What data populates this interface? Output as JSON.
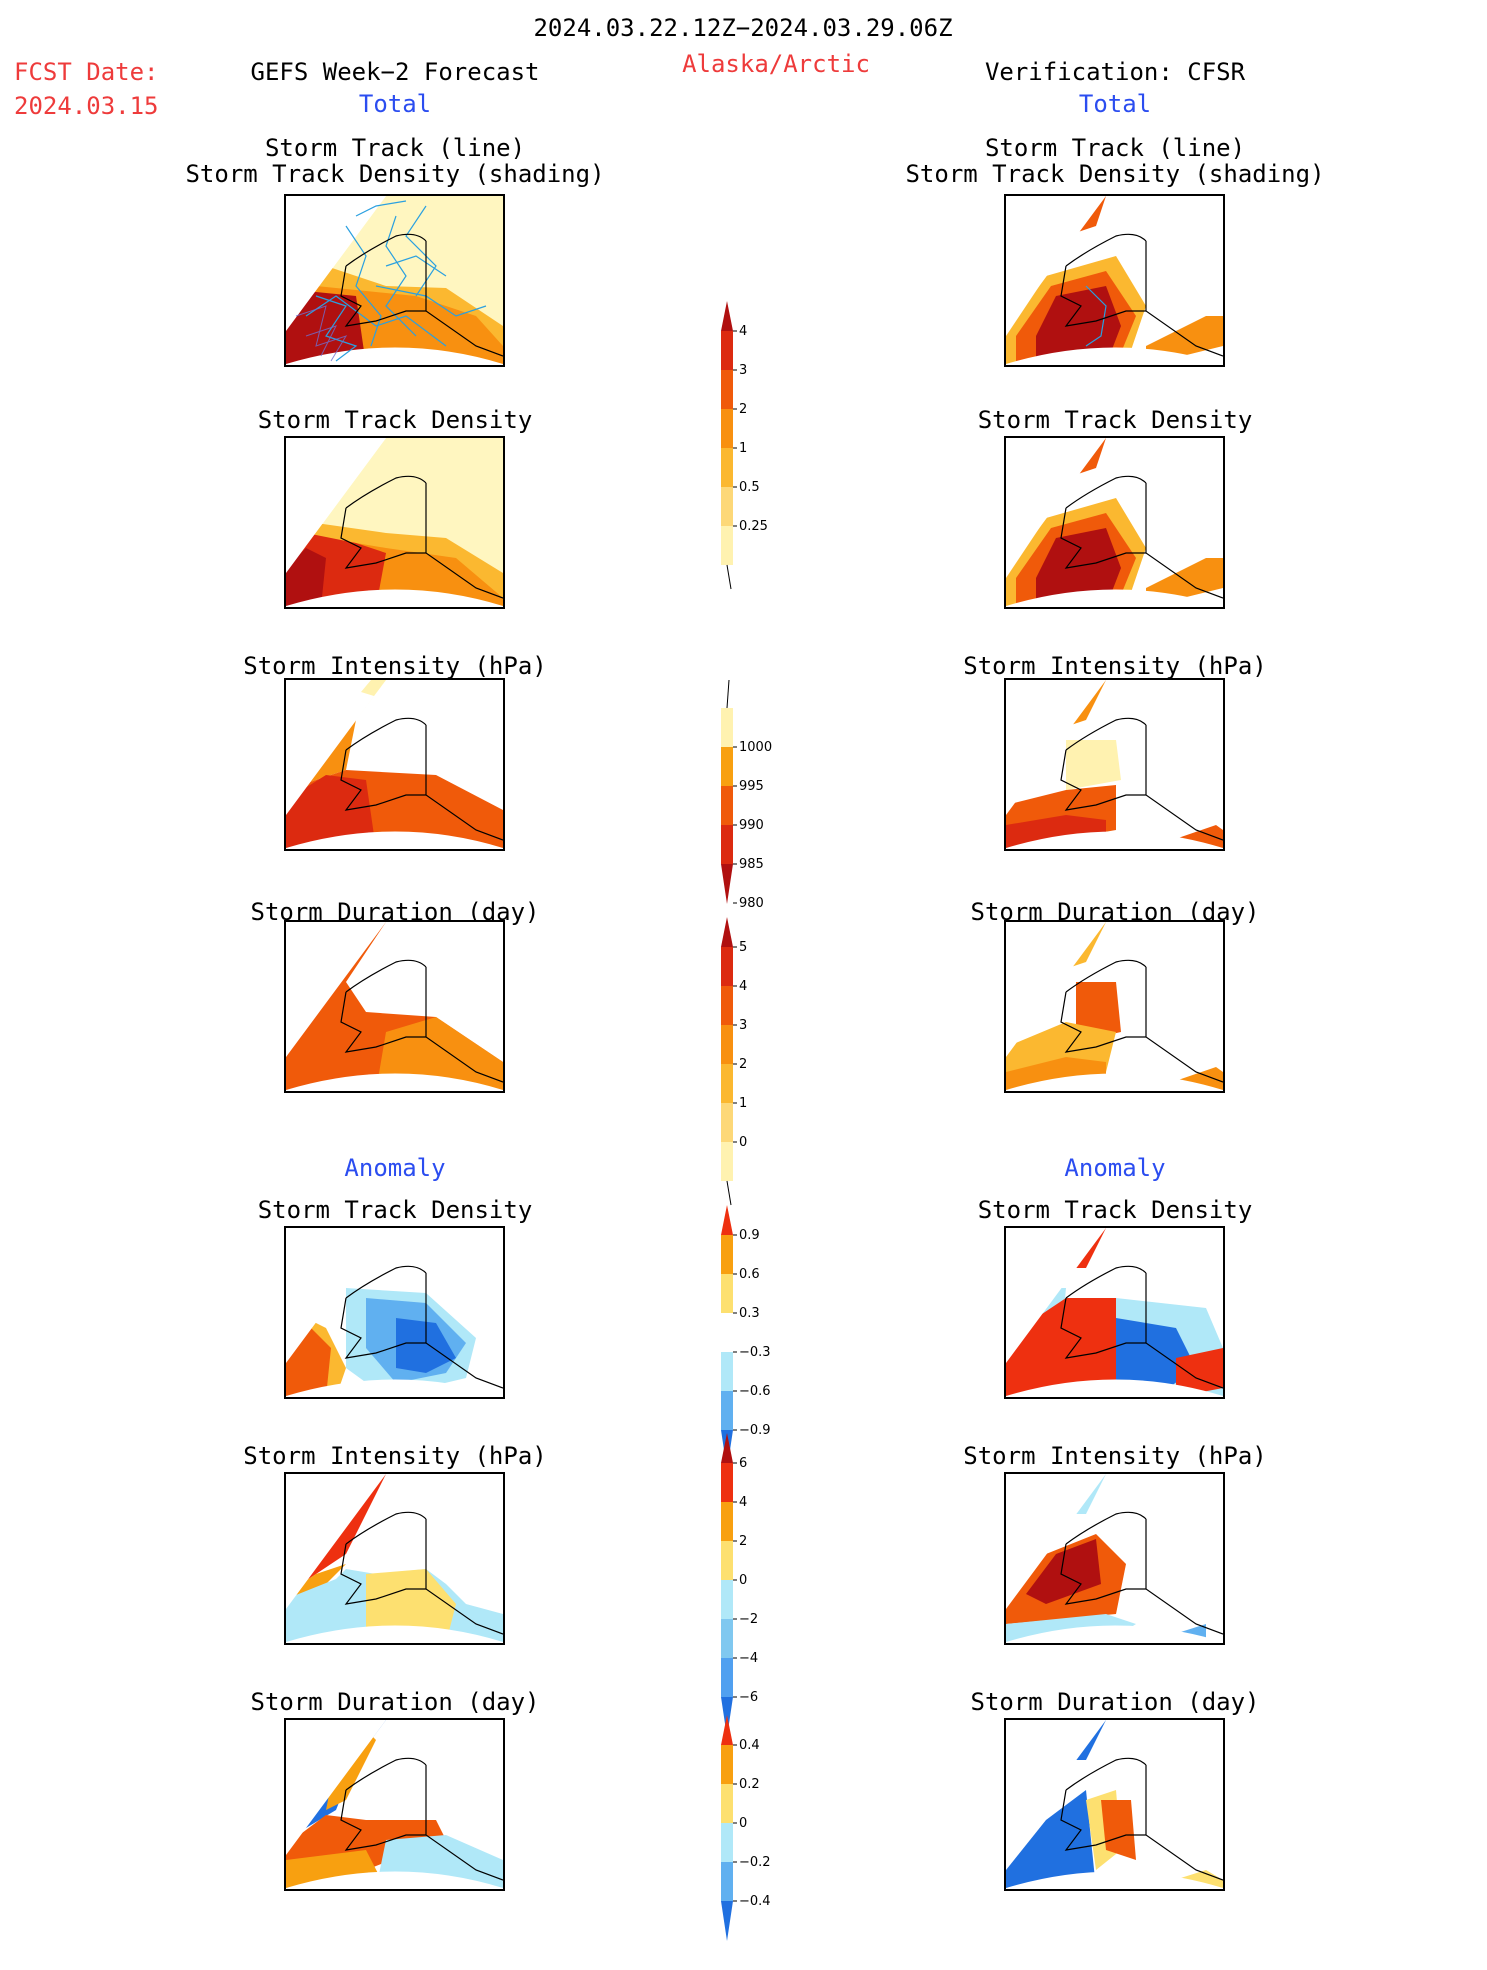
{
  "header": {
    "period": "2024.03.22.12Z−2024.03.29.06Z",
    "region": "Alaska/Arctic",
    "fcst_label": "FCST Date:",
    "fcst_date": "2024.03.15",
    "left_title": "GEFS Week−2 Forecast",
    "left_sub": "Total",
    "right_title": "Verification: CFSR",
    "right_sub": "Total"
  },
  "left": {
    "p1_line1": "Storm Track (line)",
    "p1_line2": "Storm Track Density (shading)",
    "p2": "Storm Track Density",
    "p3": "Storm Intensity (hPa)",
    "p4": "Storm Duration (day)",
    "anomaly": "Anomaly",
    "p5": "Storm Track Density",
    "p6": "Storm Intensity (hPa)",
    "p7": "Storm Duration (day)"
  },
  "right": {
    "p1_line1": "Storm Track (line)",
    "p1_line2": "Storm Track Density (shading)",
    "p2": "Storm Track Density",
    "p3": "Storm Intensity (hPa)",
    "p4": "Storm Duration (day)",
    "anomaly": "Anomaly",
    "p5": "Storm Track Density",
    "p6": "Storm Intensity (hPa)",
    "p7": "Storm Duration (day)"
  },
  "colorbars": {
    "density": {
      "labels": [
        "4",
        "3",
        "2",
        "1",
        "0.5",
        "0.25"
      ],
      "colors": [
        "#b01010",
        "#dc2a10",
        "#f05a0a",
        "#f89010",
        "#fbb830",
        "#fdd878",
        "#fff2b0"
      ]
    },
    "intensity": {
      "labels": [
        "1000",
        "995",
        "990",
        "985",
        "980"
      ],
      "colors": [
        "#fff2b0",
        "#f8a010",
        "#f05a0a",
        "#dc2a10",
        "#b01010"
      ]
    },
    "duration": {
      "labels": [
        "5",
        "4",
        "3",
        "2",
        "1",
        "0"
      ],
      "colors": [
        "#b01010",
        "#dc2a10",
        "#f05a0a",
        "#f89010",
        "#fbb830",
        "#fdd878",
        "#fff2b0"
      ]
    },
    "anom_density": {
      "labels": [
        "0.9",
        "0.6",
        "0.3",
        "−0.3",
        "−0.6",
        "−0.9"
      ],
      "colors": [
        "#ee3010",
        "#f8a010",
        "#fde070",
        "#ffffff",
        "#b0e8f8",
        "#60b0f0",
        "#2070e0"
      ]
    },
    "anom_intensity": {
      "labels": [
        "6",
        "4",
        "2",
        "0",
        "−2",
        "−4",
        "−6"
      ],
      "colors": [
        "#b01010",
        "#ee3010",
        "#f8a010",
        "#fde070",
        "#b0e8f8",
        "#80c8f0",
        "#50a0f0",
        "#2070e0"
      ]
    },
    "anom_duration": {
      "labels": [
        "0.4",
        "0.2",
        "0",
        "−0.2",
        "−0.4"
      ],
      "colors": [
        "#ee3010",
        "#f8a010",
        "#fde070",
        "#b0e8f8",
        "#60b0f0",
        "#2070e0"
      ]
    }
  }
}
